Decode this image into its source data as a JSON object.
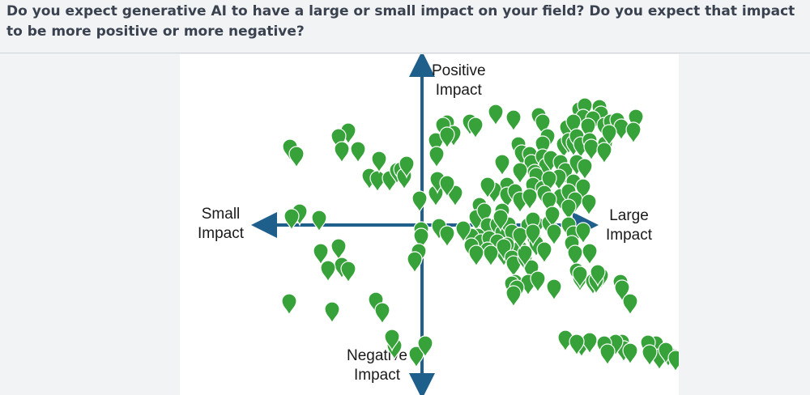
{
  "question": {
    "text": "Do you expect generative AI to have a large or small impact on your field? Do you expect that impact to be more positive or more negative?"
  },
  "board": {
    "colors": {
      "axis": "#1f5f8b",
      "pin": "#36a239",
      "pin_stroke": "#ffffff"
    },
    "labels": {
      "positive": [
        "Positive",
        "Impact"
      ],
      "negative": [
        "Negative",
        "Impact"
      ],
      "small": [
        "Small",
        "Impact"
      ],
      "large": [
        "Large",
        "Impact"
      ]
    },
    "pin_icon": "map-pin-icon",
    "pin_count": 178
  }
}
